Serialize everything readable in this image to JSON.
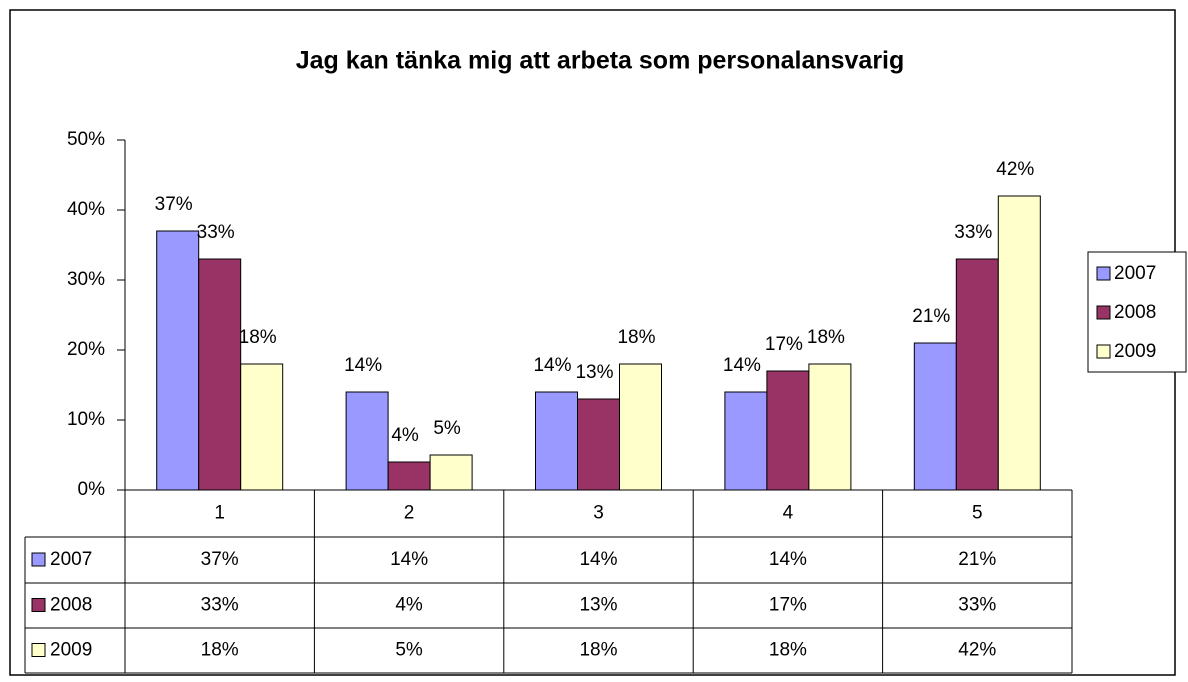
{
  "chart_data": {
    "type": "bar",
    "title": "Jag kan tänka mig att arbeta som personalansvarig",
    "categories": [
      "1",
      "2",
      "3",
      "4",
      "5"
    ],
    "series": [
      {
        "name": "2007",
        "color": "#9999ff",
        "values": [
          37,
          14,
          14,
          14,
          21
        ],
        "value_labels": [
          "37%",
          "14%",
          "14%",
          "14%",
          "21%"
        ]
      },
      {
        "name": "2008",
        "color": "#993366",
        "values": [
          33,
          4,
          13,
          17,
          33
        ],
        "value_labels": [
          "33%",
          "4%",
          "13%",
          "17%",
          "33%"
        ]
      },
      {
        "name": "2009",
        "color": "#ffffcc",
        "values": [
          18,
          5,
          18,
          18,
          42
        ],
        "value_labels": [
          "18%",
          "5%",
          "18%",
          "18%",
          "42%"
        ]
      }
    ],
    "ylim": [
      0,
      50
    ],
    "yticks": [
      {
        "value": 0,
        "label": "0%"
      },
      {
        "value": 10,
        "label": "10%"
      },
      {
        "value": 20,
        "label": "20%"
      },
      {
        "value": 30,
        "label": "30%"
      },
      {
        "value": 40,
        "label": "40%"
      },
      {
        "value": 50,
        "label": "50%"
      }
    ],
    "legend": "right",
    "data_table": true
  }
}
